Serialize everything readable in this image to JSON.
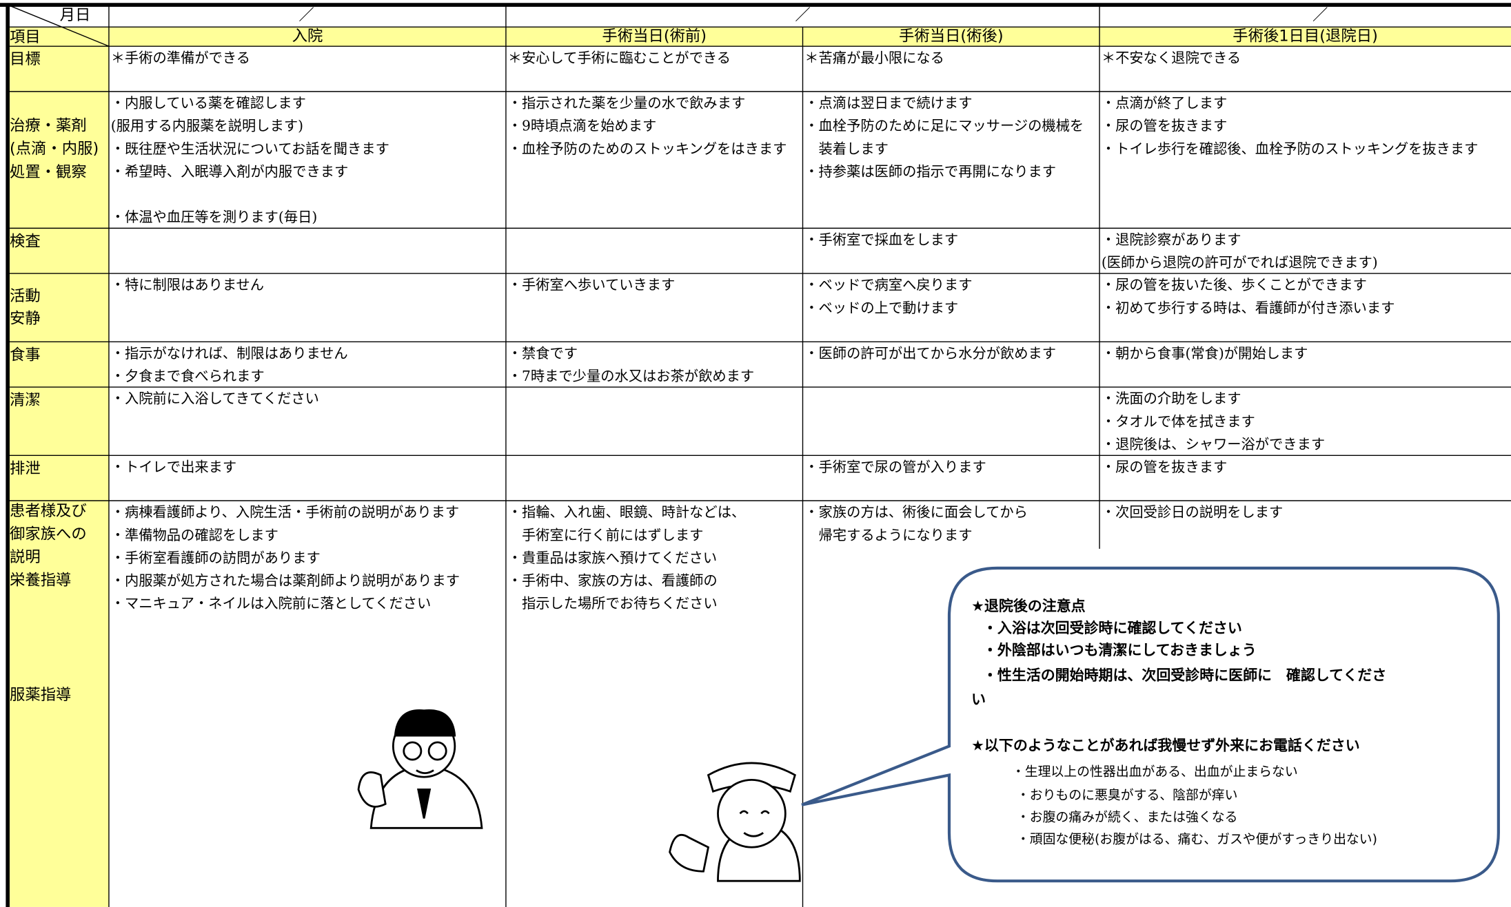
{
  "header": {
    "month_day": "月日",
    "item": "項目",
    "dates": [
      "／",
      "／",
      "／"
    ],
    "columns": [
      "入院",
      "手術当日(術前)",
      "手術当日(術後)",
      "手術後1日目(退院日)"
    ]
  },
  "rows": [
    {
      "label": [
        "目標"
      ],
      "cells": [
        [
          "＊手術の準備ができる"
        ],
        [
          "＊安心して手術に臨むことができる"
        ],
        [
          "＊苦痛が最小限になる"
        ],
        [
          "＊不安なく退院できる"
        ]
      ]
    },
    {
      "label": [
        "治療・薬剤",
        "(点滴・内服)",
        "処置・観察"
      ],
      "cells": [
        [
          "・内服している薬を確認します",
          "(服用する内服薬を説明します)",
          "・既往歴や生活状況についてお話を聞きます",
          "・希望時、入眠導入剤が内服できます",
          "・体温や血圧等を測ります(毎日)"
        ],
        [
          "・指示された薬を少量の水で飲みます",
          "・9時頃点滴を始めます",
          "・血栓予防のためのストッキングをはきます"
        ],
        [
          "・点滴は翌日まで続けます",
          "・血栓予防のために足にマッサージの機械を",
          "　装着します",
          "・持参薬は医師の指示で再開になります"
        ],
        [
          "・点滴が終了します",
          "・尿の管を抜きます",
          "・トイレ歩行を確認後、血栓予防のストッキングを抜きます"
        ]
      ]
    },
    {
      "label": [
        "検査"
      ],
      "cells": [
        [],
        [],
        [
          "・手術室で採血をします"
        ],
        [
          "・退院診察があります",
          "(医師から退院の許可がでれば退院できます)"
        ]
      ]
    },
    {
      "label": [
        "活動",
        "安静"
      ],
      "cells": [
        [
          "・特に制限はありません"
        ],
        [
          "・手術室へ歩いていきます"
        ],
        [
          "・ベッドで病室へ戻ります",
          "・ベッドの上で動けます"
        ],
        [
          "・尿の管を抜いた後、歩くことができます",
          "・初めて歩行する時は、看護師が付き添います"
        ]
      ]
    },
    {
      "label": [
        "食事"
      ],
      "cells": [
        [
          "・指示がなければ、制限はありません",
          "・夕食まで食べられます"
        ],
        [
          "・禁食です",
          "・7時まで少量の水又はお茶が飲めます"
        ],
        [
          "・医師の許可が出てから水分が飲めます"
        ],
        [
          "・朝から食事(常食)が開始します"
        ]
      ]
    },
    {
      "label": [
        "清潔"
      ],
      "cells": [
        [
          "・入院前に入浴してきてください"
        ],
        [],
        [],
        [
          "・洗面の介助をします",
          "・タオルで体を拭きます",
          "・退院後は、シャワー浴ができます"
        ]
      ]
    },
    {
      "label": [
        "排泄"
      ],
      "cells": [
        [
          "・トイレで出来ます"
        ],
        [],
        [
          "・手術室で尿の管が入ります"
        ],
        [
          "・尿の管を抜きます"
        ]
      ]
    },
    {
      "label": [
        "患者様及び",
        "御家族への",
        "説明",
        "栄養指導",
        "服薬指導"
      ],
      "cells": [
        [
          "・病棟看護師より、入院生活・手術前の説明があります",
          "・準備物品の確認をします",
          "・手術室看護師の訪問があります",
          "・内服薬が処方された場合は薬剤師より説明があります",
          "・マニキュア・ネイルは入院前に落としてください"
        ],
        [
          "・指輪、入れ歯、眼鏡、時計などは、",
          "　手術室に行く前にはずします",
          "・貴重品は家族へ預けてください",
          "・手術中、家族の方は、看護師の",
          "　指示した場所でお待ちください"
        ],
        [
          "・家族の方は、術後に面会してから",
          "　帰宅するようになります"
        ],
        [
          "・次回受診日の説明をします"
        ]
      ]
    }
  ],
  "bubble": {
    "lines": [
      "★退院後の注意点",
      "・入浴は次回受診時に確認してください",
      "・外陰部はいつも清潔にしておきましょう",
      "・性生活の開始時期は、次回受診時に医師に　確認してくださ",
      "い",
      "★以下のようなことがあれば我慢せず外来にお電話ください",
      "・生理以上の性器出血がある、出血が止まらない",
      "・おりものに悪臭がする、陰部が痒い",
      "・お腹の痛みが続く、または強くなる",
      "・頑固な便秘(お腹がはる、痛む、ガスや便がすっきり出ない)"
    ]
  }
}
